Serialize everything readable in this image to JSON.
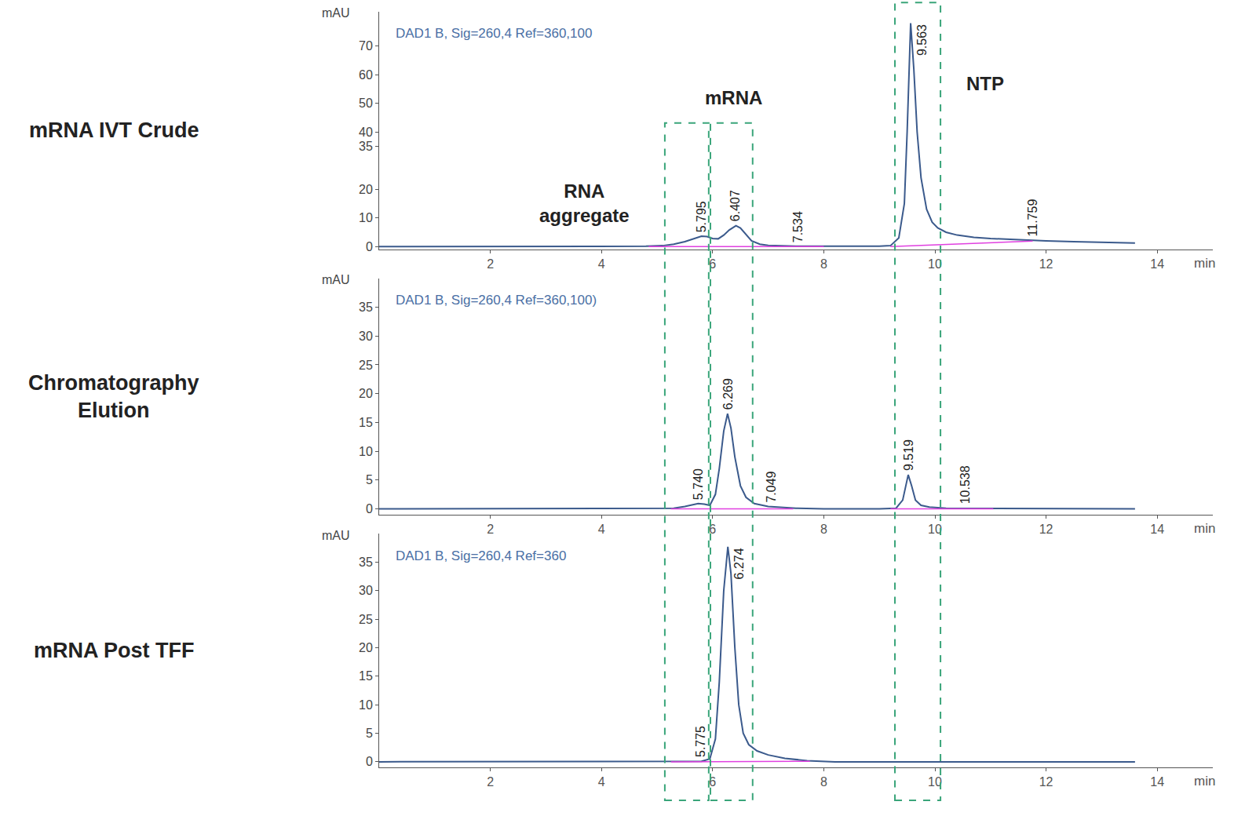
{
  "chart_data": [
    {
      "type": "line",
      "title": "mRNA IVT Crude",
      "signal_label": "DAD1 B, Sig=260,4 Ref=360,100",
      "x_label": "min",
      "y_label": "mAU",
      "xlim": [
        0,
        15
      ],
      "xticks": [
        2,
        4,
        6,
        8,
        10,
        12,
        14
      ],
      "ylim": [
        -1,
        82
      ],
      "yticks": [
        0,
        10,
        20,
        35,
        40,
        50,
        60,
        70
      ],
      "grid": false,
      "series": [
        {
          "color": "#3b5a8c",
          "x": [
            0,
            1,
            2,
            3,
            4,
            4.8,
            5.1,
            5.3,
            5.5,
            5.65,
            5.8,
            5.9,
            6.0,
            6.1,
            6.2,
            6.3,
            6.42,
            6.5,
            6.6,
            6.7,
            6.85,
            7.0,
            7.5,
            8,
            8.5,
            9.0,
            9.2,
            9.35,
            9.45,
            9.5,
            9.563,
            9.62,
            9.68,
            9.75,
            9.85,
            9.95,
            10.05,
            10.2,
            10.4,
            10.7,
            11.0,
            11.5,
            12,
            12.5,
            13,
            13.6
          ],
          "values": [
            0,
            0,
            0,
            0,
            0,
            0.1,
            0.3,
            0.8,
            1.7,
            2.6,
            3.6,
            3.5,
            2.8,
            2.7,
            4.0,
            5.8,
            7.3,
            6.5,
            4.2,
            2.0,
            0.8,
            0.4,
            0.1,
            0.05,
            0,
            0.1,
            0.3,
            3,
            15,
            40,
            78,
            62,
            40,
            24,
            13,
            8.5,
            6.5,
            5.0,
            4.0,
            3.2,
            2.8,
            2.3,
            2.0,
            1.7,
            1.4,
            1.2
          ]
        },
        {
          "color": "#e040e0",
          "x": [
            4.85,
            8.0,
            8.5,
            9.2,
            11.759
          ],
          "values": [
            0,
            0,
            null,
            0,
            1.9
          ]
        }
      ],
      "annotations": [
        {
          "text": "5.795",
          "x": 5.795
        },
        {
          "text": "6.407",
          "x": 6.407
        },
        {
          "text": "7.534",
          "x": 7.534
        },
        {
          "text": "9.563",
          "x": 9.563
        },
        {
          "text": "11.759",
          "x": 11.759
        }
      ],
      "region_labels": [
        {
          "text": "RNA\naggregate",
          "x": 3.7,
          "y": 15
        },
        {
          "text": "mRNA",
          "x": 6.37,
          "y": 52
        },
        {
          "text": "NTP",
          "x": 10.9,
          "y": 57
        }
      ],
      "regions": [
        {
          "x0": 5.14,
          "x1": 5.93
        },
        {
          "x0": 5.96,
          "x1": 6.72
        },
        {
          "x0": 9.28,
          "x1": 10.1
        }
      ]
    },
    {
      "type": "line",
      "title": "Chromatography\nElution",
      "signal_label": "DAD1 B, Sig=260,4 Ref=360,100)",
      "x_label": "min",
      "y_label": "mAU",
      "xlim": [
        0,
        15
      ],
      "xticks": [
        2,
        4,
        6,
        8,
        10,
        12,
        14
      ],
      "ylim": [
        -1,
        40
      ],
      "yticks": [
        0,
        5,
        10,
        15,
        20,
        25,
        30,
        35
      ],
      "grid": false,
      "series": [
        {
          "color": "#3b5a8c",
          "x": [
            0,
            2,
            4,
            5.0,
            5.3,
            5.5,
            5.65,
            5.74,
            5.85,
            5.95,
            6.05,
            6.12,
            6.2,
            6.269,
            6.33,
            6.4,
            6.5,
            6.6,
            6.75,
            7.0,
            7.5,
            8,
            9,
            9.3,
            9.42,
            9.519,
            9.58,
            9.65,
            9.75,
            9.9,
            10.2,
            10.6,
            11,
            12,
            13.6
          ],
          "values": [
            0,
            0,
            0,
            0,
            0.1,
            0.4,
            0.7,
            0.9,
            0.8,
            0.6,
            2.5,
            7,
            13.5,
            16.5,
            14,
            9,
            4,
            2,
            0.9,
            0.4,
            0.1,
            0,
            0,
            0.1,
            1.5,
            5.9,
            4,
            1.5,
            0.6,
            0.3,
            0.1,
            0.1,
            0,
            0,
            0
          ]
        },
        {
          "color": "#e040e0",
          "x": [
            5.25,
            7.45,
            8,
            9.2,
            11.05
          ],
          "values": [
            0,
            0,
            null,
            0,
            0
          ]
        }
      ],
      "annotations": [
        {
          "text": "5.740",
          "x": 5.74
        },
        {
          "text": "6.269",
          "x": 6.269
        },
        {
          "text": "7.049",
          "x": 7.049
        },
        {
          "text": "9.519",
          "x": 9.519
        },
        {
          "text": "10.538",
          "x": 10.538
        }
      ]
    },
    {
      "type": "line",
      "title": "mRNA Post TFF",
      "signal_label": "DAD1 B, Sig=260,4 Ref=360",
      "x_label": "min",
      "y_label": "mAU",
      "xlim": [
        0,
        15
      ],
      "xticks": [
        2,
        4,
        6,
        8,
        10,
        12,
        14
      ],
      "ylim": [
        -1,
        40
      ],
      "yticks": [
        0,
        5,
        10,
        15,
        20,
        25,
        30,
        35
      ],
      "grid": false,
      "series": [
        {
          "color": "#3b5a8c",
          "x": [
            0,
            2,
            4,
            5.0,
            5.5,
            5.8,
            5.95,
            6.05,
            6.12,
            6.2,
            6.274,
            6.33,
            6.4,
            6.47,
            6.55,
            6.65,
            6.8,
            7.0,
            7.3,
            7.7,
            8.2,
            10,
            12,
            13.6
          ],
          "values": [
            0,
            0,
            0,
            0,
            0,
            0.1,
            0.5,
            4,
            14,
            30,
            37.7,
            33,
            20,
            10,
            5,
            3,
            1.9,
            1.2,
            0.6,
            0.2,
            0,
            0,
            0,
            0
          ]
        },
        {
          "color": "#e040e0",
          "x": [
            5.25,
            7.75
          ],
          "values": [
            0,
            0.1
          ]
        }
      ],
      "annotations": [
        {
          "text": "5.775",
          "x": 5.775
        },
        {
          "text": "6.274",
          "x": 6.274
        }
      ]
    }
  ]
}
